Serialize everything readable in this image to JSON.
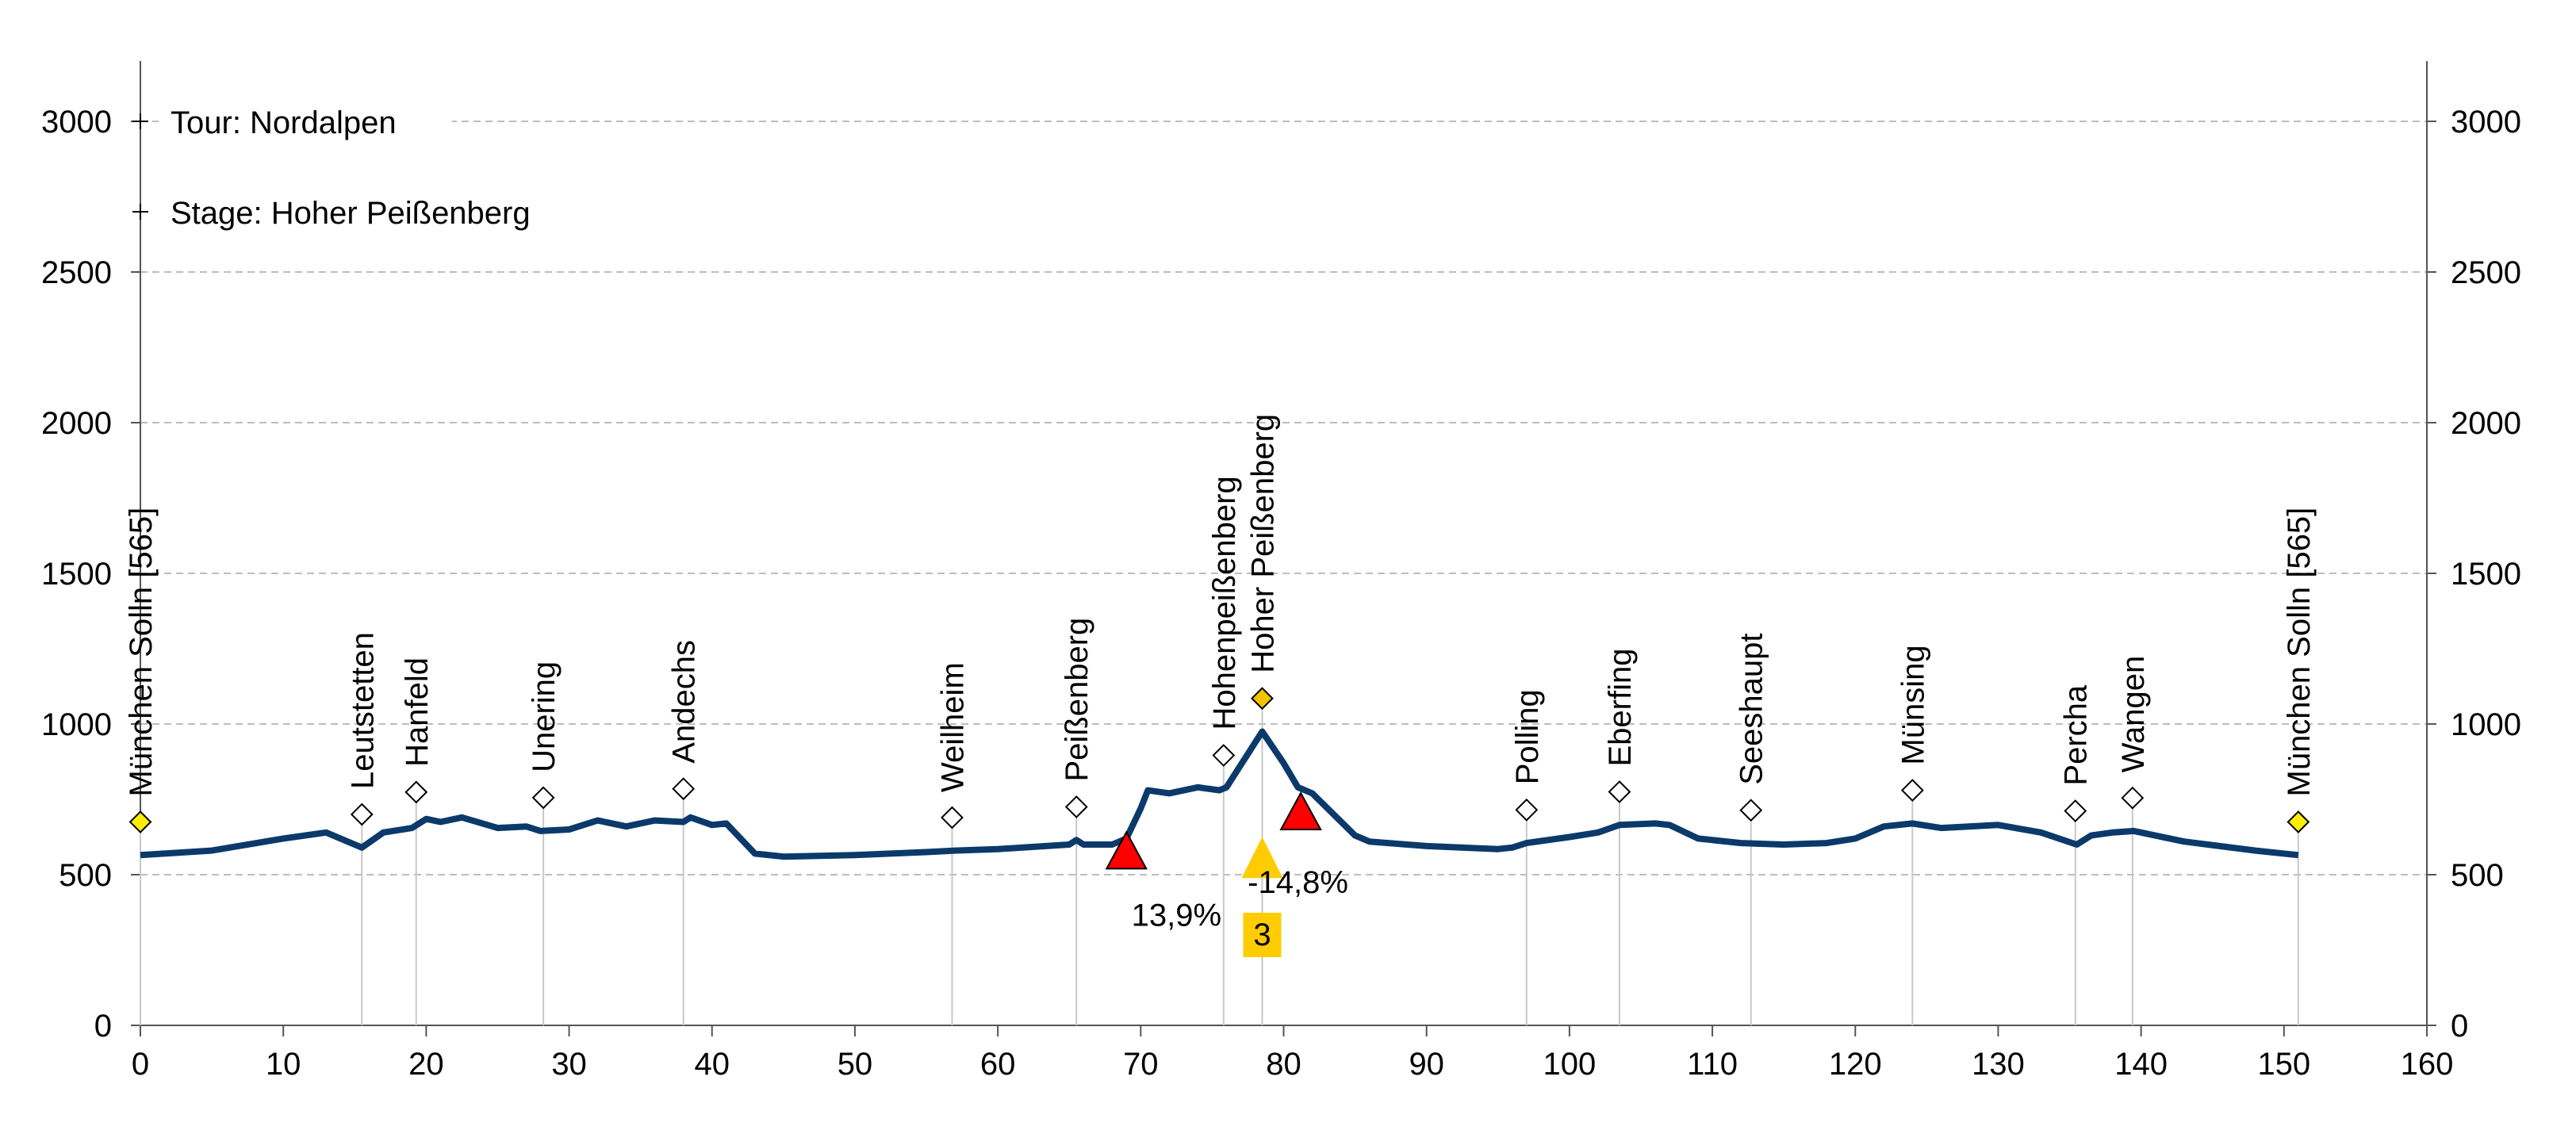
{
  "chart_data": {
    "type": "line",
    "title_lines": [
      "Tour: Nordalpen",
      "Stage: Hoher Peißenberg"
    ],
    "xlabel": "",
    "ylabel": "",
    "xlim": [
      0,
      160
    ],
    "ylim": [
      0,
      3200
    ],
    "x_ticks": [
      0,
      10,
      20,
      30,
      40,
      50,
      60,
      70,
      80,
      90,
      100,
      110,
      120,
      130,
      140,
      150,
      160
    ],
    "y_ticks": [
      0,
      500,
      1000,
      1500,
      2000,
      2500,
      3000
    ],
    "grid": "horizontal dashed",
    "line_color": "#0b3a6a",
    "series": [
      {
        "name": "elevation",
        "x": [
          0,
          5,
          10,
          13,
          15.5,
          17,
          19,
          20,
          21,
          22.5,
          25,
          27,
          28,
          30,
          32,
          34,
          36,
          38,
          38.5,
          40,
          41,
          43,
          45,
          50,
          55,
          57,
          60,
          65,
          65.5,
          66,
          68,
          69,
          70,
          70.5,
          72,
          74,
          75.5,
          76,
          78.5,
          80,
          81,
          82,
          85,
          86,
          90,
          95,
          96,
          97,
          100,
          102,
          103.5,
          106,
          107,
          109,
          112,
          115,
          118,
          120,
          122,
          124,
          126,
          130,
          133,
          135.5,
          136.5,
          138,
          139.5,
          143,
          148,
          151
        ],
        "y": [
          565,
          580,
          620,
          640,
          590,
          640,
          655,
          685,
          675,
          690,
          655,
          660,
          645,
          650,
          680,
          660,
          680,
          675,
          690,
          665,
          670,
          570,
          560,
          565,
          575,
          580,
          585,
          600,
          615,
          600,
          600,
          620,
          720,
          780,
          770,
          790,
          780,
          790,
          975,
          870,
          790,
          770,
          630,
          610,
          595,
          585,
          590,
          605,
          625,
          640,
          665,
          670,
          665,
          620,
          605,
          600,
          605,
          620,
          660,
          670,
          655,
          665,
          640,
          600,
          630,
          640,
          645,
          610,
          580,
          565
        ]
      }
    ],
    "waypoints": [
      {
        "name": "München Solln [565]",
        "km": 0,
        "highlight": true
      },
      {
        "name": "Leutstetten",
        "km": 15.5,
        "highlight": false
      },
      {
        "name": "Hanfeld",
        "km": 19.3,
        "highlight": false
      },
      {
        "name": "Unering",
        "km": 28.2,
        "highlight": false
      },
      {
        "name": "Andechs",
        "km": 38,
        "highlight": false
      },
      {
        "name": "Weilheim",
        "km": 56.8,
        "highlight": false
      },
      {
        "name": "Peißenberg",
        "km": 65.5,
        "highlight": false
      },
      {
        "name": "Hohenpeißenberg",
        "km": 75.8,
        "highlight": false
      },
      {
        "name": "Hoher Peißenberg",
        "km": 78.5,
        "highlight": true
      },
      {
        "name": "Polling",
        "km": 97,
        "highlight": false
      },
      {
        "name": "Eberfing",
        "km": 103.5,
        "highlight": false
      },
      {
        "name": "Seeshaupt",
        "km": 112.7,
        "highlight": false
      },
      {
        "name": "Münsing",
        "km": 124,
        "highlight": false
      },
      {
        "name": "Percha",
        "km": 135.4,
        "highlight": false
      },
      {
        "name": "Wangen",
        "km": 139.4,
        "highlight": false
      },
      {
        "name": "München Solln [565]",
        "km": 151,
        "highlight": true
      }
    ],
    "climbs": [
      {
        "km": 69,
        "elevation": 520,
        "gradient": "13,9%",
        "label_km": 72.5,
        "label_elev": 330,
        "color": "#ff0000"
      },
      {
        "km": 81.2,
        "elevation": 650,
        "gradient": "-14,8%",
        "label_km": 81,
        "label_elev": 440,
        "color": "#ff0000"
      }
    ],
    "category_climb": {
      "km": 78.5,
      "elevation": 510,
      "category": "3",
      "box_elev": 300,
      "color": "#ffcc00"
    },
    "highlight_color": "#ffee00",
    "summit_color": "#f2c200"
  }
}
